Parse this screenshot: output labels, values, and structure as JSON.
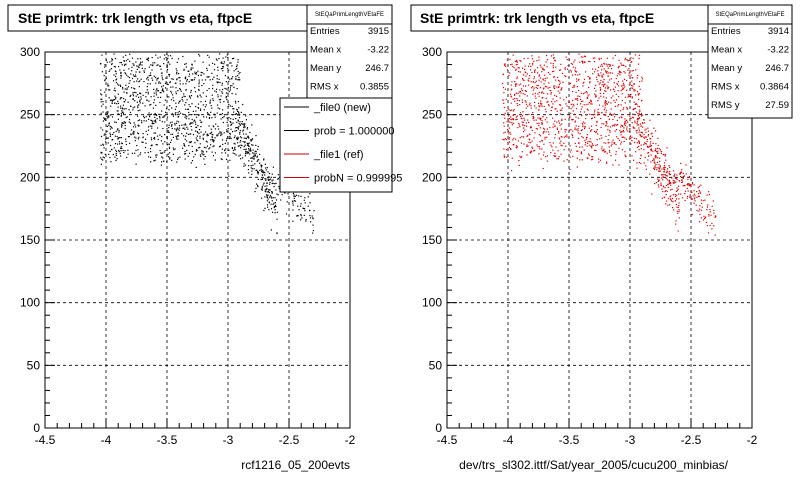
{
  "chart_data": [
    {
      "type": "scatter",
      "title": "StE primtrk: trk length vs eta, ftpcE",
      "stats_box": {
        "name": "StEQaPrimLengthVEtaFE",
        "rows": [
          {
            "label": "Entries",
            "value": "3915"
          },
          {
            "label": "Mean x",
            "value": "-3.22"
          },
          {
            "label": "Mean y",
            "value": "246.7"
          },
          {
            "label": "RMS x",
            "value": "0.3855"
          }
        ]
      },
      "legend": {
        "placement": "right",
        "entries": [
          {
            "label": "_file0 (new)",
            "color": "#000000"
          },
          {
            "label": "prob = 1.000000",
            "color": "#000000"
          },
          {
            "label": "_file1 (ref)",
            "color": "#cc0000"
          },
          {
            "label": "probN = 0.999995",
            "color": "#cc0000"
          }
        ]
      },
      "xlim": [
        -4.5,
        -2
      ],
      "ylim": [
        0,
        300
      ],
      "x_ticks": [
        "-4.5",
        "-4",
        "-3.5",
        "-3",
        "-2.5",
        "-2"
      ],
      "y_ticks": [
        "0",
        "50",
        "100",
        "150",
        "200",
        "250",
        "300"
      ],
      "grid": true,
      "marker_color": "#000000",
      "xlabel": "rcf1216_05_200evts"
    },
    {
      "type": "scatter",
      "title": "StE primtrk: trk length vs eta, ftpcE",
      "stats_box": {
        "name": "StEQaPrimLengthVEtaFE",
        "rows": [
          {
            "label": "Entries",
            "value": "3914"
          },
          {
            "label": "Mean x",
            "value": "-3.22"
          },
          {
            "label": "Mean y",
            "value": "246.7"
          },
          {
            "label": "RMS x",
            "value": "0.3864"
          },
          {
            "label": "RMS y",
            "value": "27.59"
          }
        ]
      },
      "xlim": [
        -4.5,
        -2
      ],
      "ylim": [
        0,
        300
      ],
      "x_ticks": [
        "-4.5",
        "-4",
        "-3.5",
        "-3",
        "-2.5",
        "-2"
      ],
      "y_ticks": [
        "0",
        "50",
        "100",
        "150",
        "200",
        "250",
        "300"
      ],
      "grid": true,
      "marker_color": "#dd0000",
      "xlabel": "dev/trs_sl302.ittf/Sat/year_2005/cucu200_minbias/"
    }
  ]
}
